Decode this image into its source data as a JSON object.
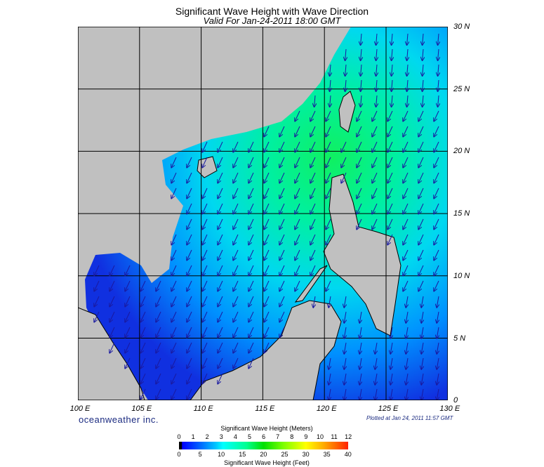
{
  "header": {
    "title": "Significant Wave Height with Wave Direction",
    "subtitle": "Valid For Jan-24-2011 18:00 GMT"
  },
  "map": {
    "lat_labels": [
      "30 N",
      "25 N",
      "20 N",
      "15 N",
      "10 N",
      "5 N",
      "0"
    ],
    "lon_labels": [
      "100 E",
      "105 E",
      "110 E",
      "115 E",
      "120 E",
      "125 E",
      "130 E"
    ],
    "land_color": "#c0c0c0",
    "grid_color": "#000000",
    "arrow_color": "#1a1aa0"
  },
  "footer": {
    "logo": "oceanweather inc.",
    "plotted": "Plotted at Jan 24, 2011 11:57 GMT"
  },
  "colorbar": {
    "title_meters": "Significant Wave Height (Meters)",
    "title_feet": "Significant Wave Height (Feet)",
    "meters_ticks": [
      "0",
      "1",
      "2",
      "3",
      "4",
      "5",
      "6",
      "7",
      "8",
      "9",
      "10",
      "11",
      "12"
    ],
    "feet_ticks": [
      "0",
      "5",
      "10",
      "15",
      "20",
      "25",
      "30",
      "35",
      "40"
    ]
  }
}
